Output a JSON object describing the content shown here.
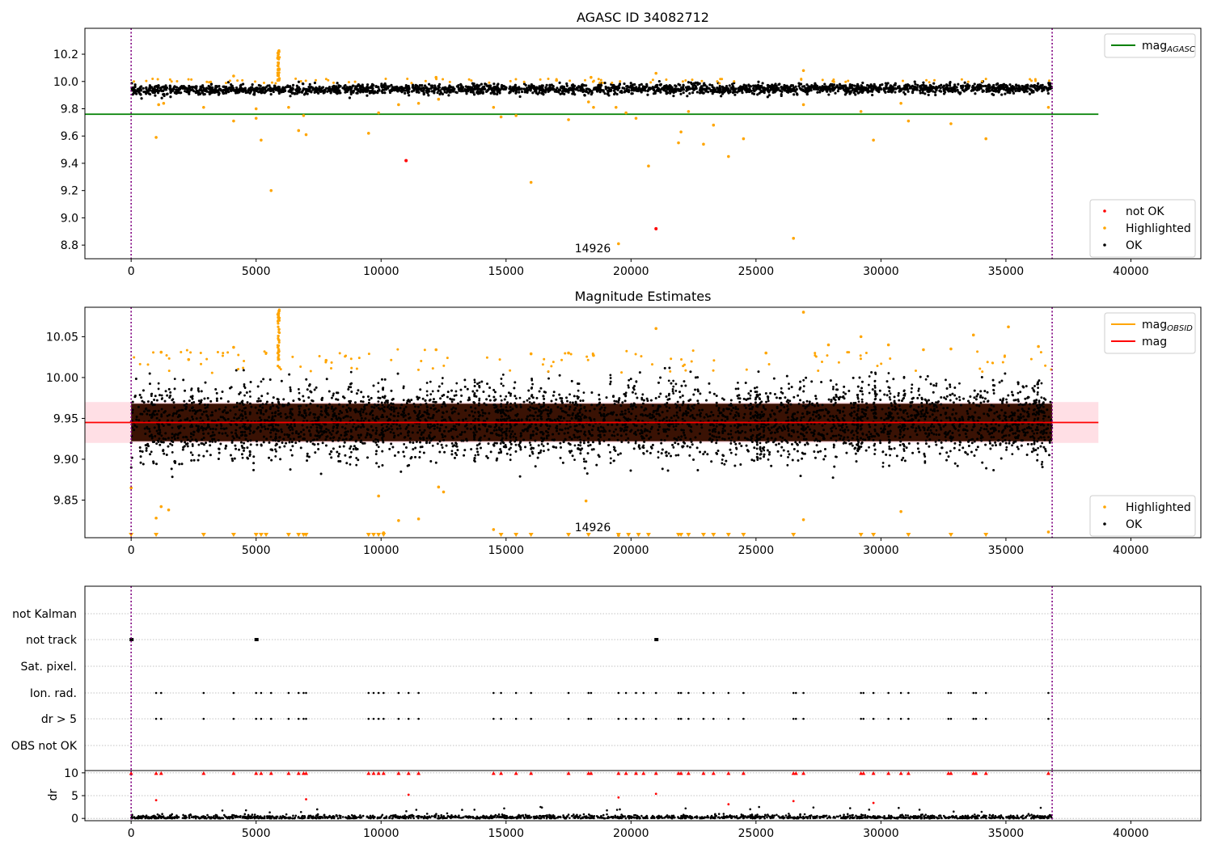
{
  "colors": {
    "ok": "#000000",
    "highlighted": "#ffa500",
    "not_ok": "#ff0000",
    "mag_agasc_line": "#008000",
    "mag_line": "#ff0000",
    "band_fill": "#ffc0cb",
    "band_fill_dark": "#3a1204",
    "obs_boundary": "#800080",
    "grid_gray": "#b0b0b0"
  },
  "chart_data": [
    {
      "type": "scatter",
      "title": "AGASC ID 34082712",
      "xlim": [
        -1850,
        42800
      ],
      "ylim": [
        8.7,
        10.39
      ],
      "x_ticks": [
        "0",
        "5000",
        "10000",
        "15000",
        "20000",
        "25000",
        "30000",
        "35000",
        "40000"
      ],
      "y_ticks": [
        "8.8",
        "9.0",
        "9.2",
        "9.4",
        "9.6",
        "9.8",
        "10.0",
        "10.2"
      ],
      "obs_boundaries_x": [
        0,
        36850
      ],
      "obsid_label": "14926",
      "obsid_label_pos": {
        "x": 18300,
        "y": 8.74
      },
      "hline_mag_agasc": {
        "y": 9.76,
        "x": [
          -1850,
          38700
        ]
      },
      "ok_band": {
        "y_center": 9.95,
        "spread": 0.04,
        "x": [
          0,
          36850
        ]
      },
      "spike": {
        "x": 5900,
        "y_range": [
          10.0,
          10.23
        ]
      },
      "highlighted_points": [
        [
          1000,
          9.59
        ],
        [
          1100,
          9.83
        ],
        [
          1300,
          9.84
        ],
        [
          2900,
          9.81
        ],
        [
          4100,
          9.71
        ],
        [
          5000,
          9.8
        ],
        [
          5000,
          9.73
        ],
        [
          5200,
          9.57
        ],
        [
          5600,
          9.2
        ],
        [
          6300,
          9.81
        ],
        [
          6700,
          9.64
        ],
        [
          6900,
          9.75
        ],
        [
          7000,
          9.61
        ],
        [
          9500,
          9.62
        ],
        [
          9900,
          9.77
        ],
        [
          10700,
          9.83
        ],
        [
          11500,
          9.84
        ],
        [
          12300,
          9.87
        ],
        [
          14500,
          9.81
        ],
        [
          14800,
          9.74
        ],
        [
          15400,
          9.75
        ],
        [
          16000,
          9.26
        ],
        [
          17500,
          9.72
        ],
        [
          18300,
          9.85
        ],
        [
          18500,
          9.81
        ],
        [
          19400,
          9.81
        ],
        [
          19500,
          8.81
        ],
        [
          19800,
          9.77
        ],
        [
          20200,
          9.73
        ],
        [
          20700,
          9.38
        ],
        [
          21900,
          9.55
        ],
        [
          22000,
          9.63
        ],
        [
          22300,
          9.78
        ],
        [
          22900,
          9.54
        ],
        [
          23300,
          9.68
        ],
        [
          23900,
          9.45
        ],
        [
          24500,
          9.58
        ],
        [
          26500,
          8.85
        ],
        [
          26900,
          9.83
        ],
        [
          29200,
          9.78
        ],
        [
          29700,
          9.57
        ],
        [
          30800,
          9.84
        ],
        [
          31100,
          9.71
        ],
        [
          32800,
          9.69
        ],
        [
          34200,
          9.58
        ],
        [
          36700,
          9.81
        ],
        [
          21000,
          10.06
        ],
        [
          26900,
          10.08
        ],
        [
          18400,
          10.03
        ],
        [
          12200,
          10.03
        ],
        [
          4100,
          10.04
        ]
      ],
      "not_ok_points": [
        [
          11000,
          9.42
        ],
        [
          21000,
          8.92
        ]
      ],
      "legends": [
        {
          "position": "upper right",
          "entries": [
            {
              "label": "mag",
              "sub": "AGASC",
              "marker": "line",
              "color": "#008000"
            }
          ]
        },
        {
          "position": "lower right",
          "entries": [
            {
              "label": "not OK",
              "marker": "dot",
              "color": "#ff0000"
            },
            {
              "label": "Highlighted",
              "marker": "dot",
              "color": "#ffa500"
            },
            {
              "label": "OK",
              "marker": "dot",
              "color": "#000000"
            }
          ]
        }
      ]
    },
    {
      "type": "scatter",
      "title": "Magnitude Estimates",
      "xlim": [
        -1850,
        42800
      ],
      "ylim": [
        9.804,
        10.086
      ],
      "x_ticks": [
        "0",
        "5000",
        "10000",
        "15000",
        "20000",
        "25000",
        "30000",
        "35000",
        "40000"
      ],
      "y_ticks": [
        "9.85",
        "9.90",
        "9.95",
        "10.00",
        "10.05"
      ],
      "obs_boundaries_x": [
        0,
        36850
      ],
      "obsid_label": "14926",
      "obsid_label_pos": {
        "x": 18300,
        "y": 9.812
      },
      "hline_mag": {
        "y": 9.945,
        "x": [
          -1850,
          38700
        ]
      },
      "mag_band": {
        "y": [
          9.92,
          9.97
        ],
        "x": [
          -1850,
          38700
        ]
      },
      "ok_band": {
        "y_center": 9.945,
        "spread": 0.055
      },
      "spike": {
        "x": 5900,
        "y_range": [
          10.01,
          10.083
        ]
      },
      "highlighted_points": [
        [
          0,
          9.865
        ],
        [
          1000,
          9.828
        ],
        [
          1200,
          9.842
        ],
        [
          1500,
          9.838
        ],
        [
          9900,
          9.855
        ],
        [
          10100,
          9.81
        ],
        [
          10700,
          9.825
        ],
        [
          11500,
          9.827
        ],
        [
          12300,
          9.866
        ],
        [
          12500,
          9.86
        ],
        [
          14500,
          9.814
        ],
        [
          18200,
          9.849
        ],
        [
          19500,
          9.807
        ],
        [
          26900,
          9.826
        ],
        [
          30800,
          9.836
        ],
        [
          36700,
          9.811
        ],
        [
          4100,
          10.037
        ],
        [
          12200,
          10.034
        ],
        [
          16000,
          10.029
        ],
        [
          17500,
          10.03
        ],
        [
          21000,
          10.06
        ],
        [
          26900,
          10.08
        ],
        [
          29200,
          10.05
        ],
        [
          33700,
          10.052
        ],
        [
          35100,
          10.062
        ],
        [
          36300,
          10.038
        ],
        [
          1200,
          10.031
        ],
        [
          2300,
          10.022
        ],
        [
          7800,
          10.021
        ],
        [
          18500,
          10.027
        ],
        [
          25400,
          10.03
        ],
        [
          27900,
          10.04
        ],
        [
          30300,
          10.04
        ],
        [
          31700,
          10.034
        ],
        [
          32800,
          10.035
        ]
      ],
      "bottom_triangles_x": [
        0,
        1000,
        2900,
        4100,
        5000,
        5200,
        5400,
        6300,
        6700,
        6900,
        7000,
        9500,
        9700,
        9900,
        10100,
        14800,
        15400,
        16000,
        17500,
        18300,
        19500,
        19900,
        20300,
        20700,
        21900,
        22000,
        22300,
        22900,
        23300,
        23900,
        24500,
        26500,
        29200,
        29700,
        31100,
        32800,
        34200
      ],
      "legends": [
        {
          "position": "upper right",
          "entries": [
            {
              "label": "mag",
              "sub": "OBSID",
              "marker": "line",
              "color": "#ffa500"
            },
            {
              "label": "mag",
              "marker": "line",
              "color": "#ff0000"
            }
          ]
        },
        {
          "position": "lower right",
          "entries": [
            {
              "label": "Highlighted",
              "marker": "dot",
              "color": "#ffa500"
            },
            {
              "label": "OK",
              "marker": "dot",
              "color": "#000000"
            }
          ]
        }
      ]
    },
    {
      "type": "scatter",
      "title": "",
      "xlim": [
        -1850,
        42800
      ],
      "flag_rows": [
        "not Kalman",
        "not track",
        "Sat. pixel.",
        "Ion. rad.",
        "dr > 5",
        "OBS not OK"
      ],
      "obs_boundaries_x": [
        0,
        36850
      ],
      "flag_events_x": [
        1000,
        1200,
        2900,
        4100,
        5000,
        5200,
        5600,
        6300,
        6700,
        6900,
        7000,
        9500,
        9700,
        9900,
        10100,
        10700,
        11100,
        11500,
        14500,
        14800,
        15400,
        16000,
        17500,
        18300,
        18400,
        19500,
        19800,
        20200,
        20500,
        21000,
        21900,
        22000,
        22300,
        22900,
        23300,
        23900,
        24500,
        26500,
        26600,
        26900,
        29200,
        29300,
        29700,
        30300,
        30800,
        31100,
        32700,
        32800,
        33700,
        33800,
        34200,
        36700
      ],
      "not_track_x": [
        0,
        5000,
        21000
      ]
    },
    {
      "type": "scatter",
      "title": "",
      "xlim": [
        -1850,
        42800
      ],
      "ylim": [
        -0.5,
        10.5
      ],
      "ylabel": "dr",
      "x_ticks": [
        "0",
        "5000",
        "10000",
        "15000",
        "20000",
        "25000",
        "30000",
        "35000",
        "40000"
      ],
      "y_ticks": [
        "0",
        "5",
        "10"
      ],
      "obs_boundaries_x": [
        0,
        36850
      ],
      "clipped_points_x": [
        0,
        1000,
        1200,
        2900,
        4100,
        5000,
        5200,
        5600,
        6300,
        6700,
        6900,
        7000,
        9500,
        9700,
        9900,
        10100,
        10700,
        11100,
        11500,
        14500,
        14800,
        15400,
        16000,
        17500,
        18300,
        18400,
        19500,
        19800,
        20200,
        20500,
        21000,
        21900,
        22000,
        22300,
        22900,
        23300,
        23900,
        24500,
        26500,
        26600,
        26900,
        29200,
        29300,
        29700,
        30300,
        30800,
        31100,
        32700,
        32800,
        33700,
        33800,
        34200,
        36700
      ],
      "red_points": [
        [
          1000,
          4.0
        ],
        [
          7000,
          4.2
        ],
        [
          11100,
          5.2
        ],
        [
          19500,
          4.6
        ],
        [
          21000,
          5.4
        ],
        [
          23900,
          3.1
        ],
        [
          26500,
          3.8
        ],
        [
          29700,
          3.4
        ]
      ],
      "ok_scatter": {
        "y_range": [
          0,
          1.2
        ],
        "x": [
          0,
          36850
        ]
      }
    }
  ]
}
